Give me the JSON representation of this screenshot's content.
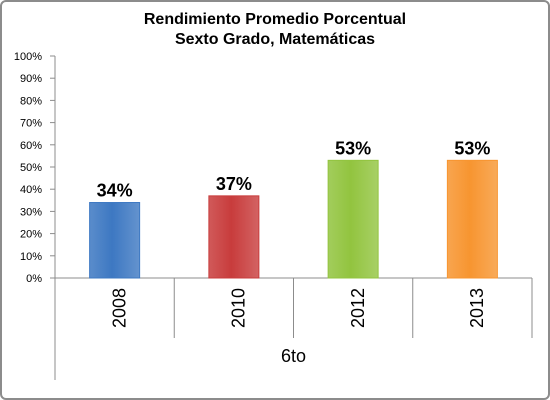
{
  "chart_data": {
    "type": "bar",
    "title": [
      "Rendimiento Promedio Porcentual",
      "Sexto Grado, Matemáticas"
    ],
    "categories": [
      "2008",
      "2010",
      "2012",
      "2013"
    ],
    "values": [
      34,
      37,
      53,
      53
    ],
    "data_labels": [
      "34%",
      "37%",
      "53%",
      "53%"
    ],
    "bar_colors": [
      "#3d78c2",
      "#c83c3c",
      "#92c43f",
      "#f79530"
    ],
    "ylim": [
      0,
      100
    ],
    "yticks": [
      "0%",
      "10%",
      "20%",
      "30%",
      "40%",
      "50%",
      "60%",
      "70%",
      "80%",
      "90%",
      "100%"
    ],
    "group_label": "6to",
    "grid": false,
    "legend": "none"
  }
}
